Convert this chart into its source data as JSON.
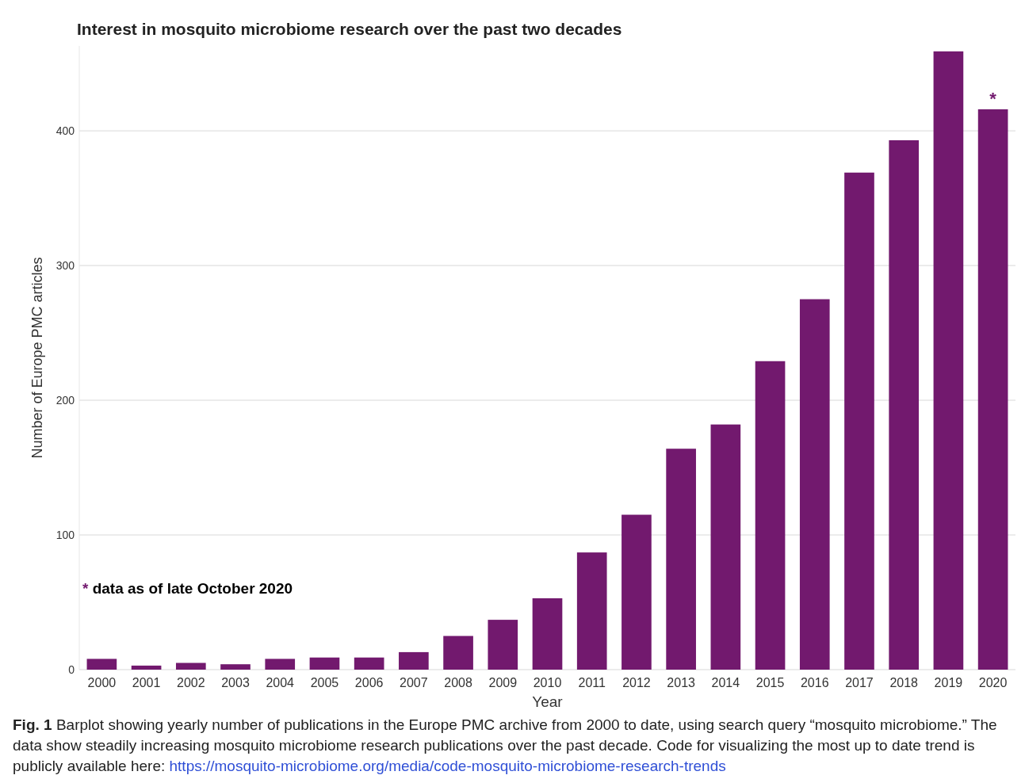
{
  "chart_data": {
    "type": "bar",
    "title": "Interest in mosquito microbiome research over the past two decades",
    "xlabel": "Year",
    "ylabel": "Number of Europe PMC articles",
    "categories": [
      "2000",
      "2001",
      "2002",
      "2003",
      "2004",
      "2005",
      "2006",
      "2007",
      "2008",
      "2009",
      "2010",
      "2011",
      "2012",
      "2013",
      "2014",
      "2015",
      "2016",
      "2017",
      "2018",
      "2019",
      "2020"
    ],
    "values": [
      8,
      3,
      5,
      4,
      8,
      9,
      9,
      13,
      25,
      37,
      53,
      87,
      115,
      164,
      182,
      229,
      275,
      369,
      393,
      459,
      416
    ],
    "color": "#72196e",
    "ylim": [
      0,
      463
    ],
    "yticks": [
      0,
      100,
      200,
      300,
      400
    ],
    "grid": "y",
    "annotations": [
      {
        "text": "*",
        "x": "2020",
        "y": 416
      },
      "* data as of late October 2020",
      "Fig. 1",
      "Barplot showing yearly number of publications in the Europe PMC archive from 2000 to date, using search query “mosquito microbiome.” The data show steadily increasing mosquito microbiome research publications over the past decade. Code for visualizing the most up to date trend is publicly available here:",
      "https://mosquito-microbiome.org/media/code-mosquito-microbiome-research-trends"
    ]
  }
}
